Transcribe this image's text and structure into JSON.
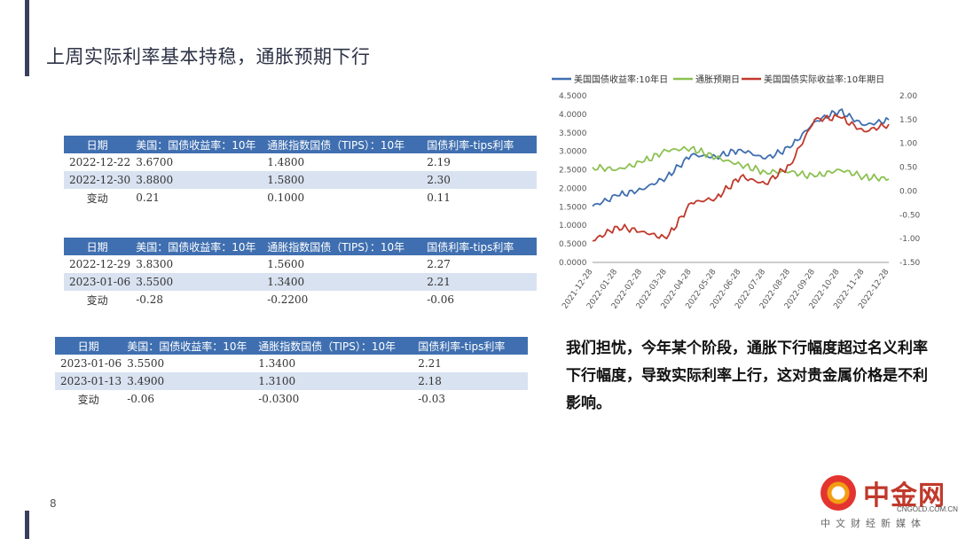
{
  "title": "上周实际利率基本持稳，通胀预期下行",
  "page_number": "8",
  "tables": [
    {
      "headers": [
        "日期",
        "美国：国债收益率：10年",
        "通胀指数国债（TIPS）：10年",
        "国债利率-tips利率"
      ],
      "rows": [
        [
          "2022-12-22",
          "3.6700",
          "1.4800",
          "2.19"
        ],
        [
          "2022-12-30",
          "3.8800",
          "1.5800",
          "2.30"
        ],
        [
          "变动",
          "0.21",
          "0.1000",
          "0.11"
        ]
      ]
    },
    {
      "headers": [
        "日期",
        "美国：国债收益率：10年",
        "通胀指数国债（TIPS）：10年",
        "国债利率-tips利率"
      ],
      "rows": [
        [
          "2022-12-29",
          "3.8300",
          "1.5600",
          "2.27"
        ],
        [
          "2023-01-06",
          "3.5500",
          "1.3400",
          "2.21"
        ],
        [
          "变动",
          "-0.28",
          "-0.2200",
          "-0.06"
        ]
      ]
    },
    {
      "headers": [
        "日期",
        "美国：国债收益率：10年",
        "通胀指数国债（TIPS）：10年",
        "国债利率-tips利率"
      ],
      "rows": [
        [
          "2023-01-06",
          "3.5500",
          "1.3400",
          "2.21"
        ],
        [
          "2023-01-13",
          "3.4900",
          "1.3100",
          "2.18"
        ],
        [
          "变动",
          "-0.06",
          "-0.0300",
          "-0.03"
        ]
      ]
    }
  ],
  "note": "我们担忧，今年某个阶段，通胀下行幅度超过名义利率下行幅度，导致实际利率上行，这对贵金属价格是不利影响。",
  "logo": {
    "name": "中金网",
    "domain": "CNGOLD.COM.CN",
    "tagline": "中文财经新媒体"
  },
  "chart_data": {
    "type": "line",
    "categories": [
      "2021-12-28",
      "2022-01-28",
      "2022-02-28",
      "2022-03-28",
      "2022-04-28",
      "2022-05-28",
      "2022-06-28",
      "2022-07-28",
      "2022-08-28",
      "2022-09-28",
      "2022-10-28",
      "2022-11-28",
      "2022-12-28"
    ],
    "left_axis": {
      "min": 0,
      "max": 4.5,
      "ticks": [
        "0.0000",
        "0.5000",
        "1.0000",
        "1.5000",
        "2.0000",
        "2.5000",
        "3.0000",
        "3.5000",
        "4.0000",
        "4.5000"
      ]
    },
    "right_axis": {
      "min": -1.5,
      "max": 2.0,
      "ticks": [
        "-1.50",
        "-1.00",
        "-0.50",
        "0.00",
        "0.50",
        "1.00",
        "1.50",
        "2.00"
      ]
    },
    "series": [
      {
        "name": "美国国债收益率:10年日",
        "color": "#3f6fb0",
        "axis": "left",
        "values": [
          1.52,
          1.8,
          1.97,
          2.3,
          2.9,
          2.85,
          3.05,
          2.8,
          3.1,
          3.8,
          4.1,
          3.7,
          3.85
        ]
      },
      {
        "name": "通胀预期日",
        "color": "#8cc152",
        "axis": "right",
        "values": [
          0.5,
          0.45,
          0.6,
          0.85,
          0.9,
          0.7,
          0.55,
          0.4,
          0.4,
          0.3,
          0.45,
          0.3,
          0.25
        ]
      },
      {
        "name": "美国国债实际收益率:10年期日",
        "color": "#c0392b",
        "axis": "right",
        "values": [
          -1.05,
          -0.75,
          -0.85,
          -1.0,
          -0.25,
          -0.15,
          0.3,
          0.15,
          0.55,
          1.5,
          1.55,
          1.25,
          1.4
        ]
      }
    ]
  }
}
